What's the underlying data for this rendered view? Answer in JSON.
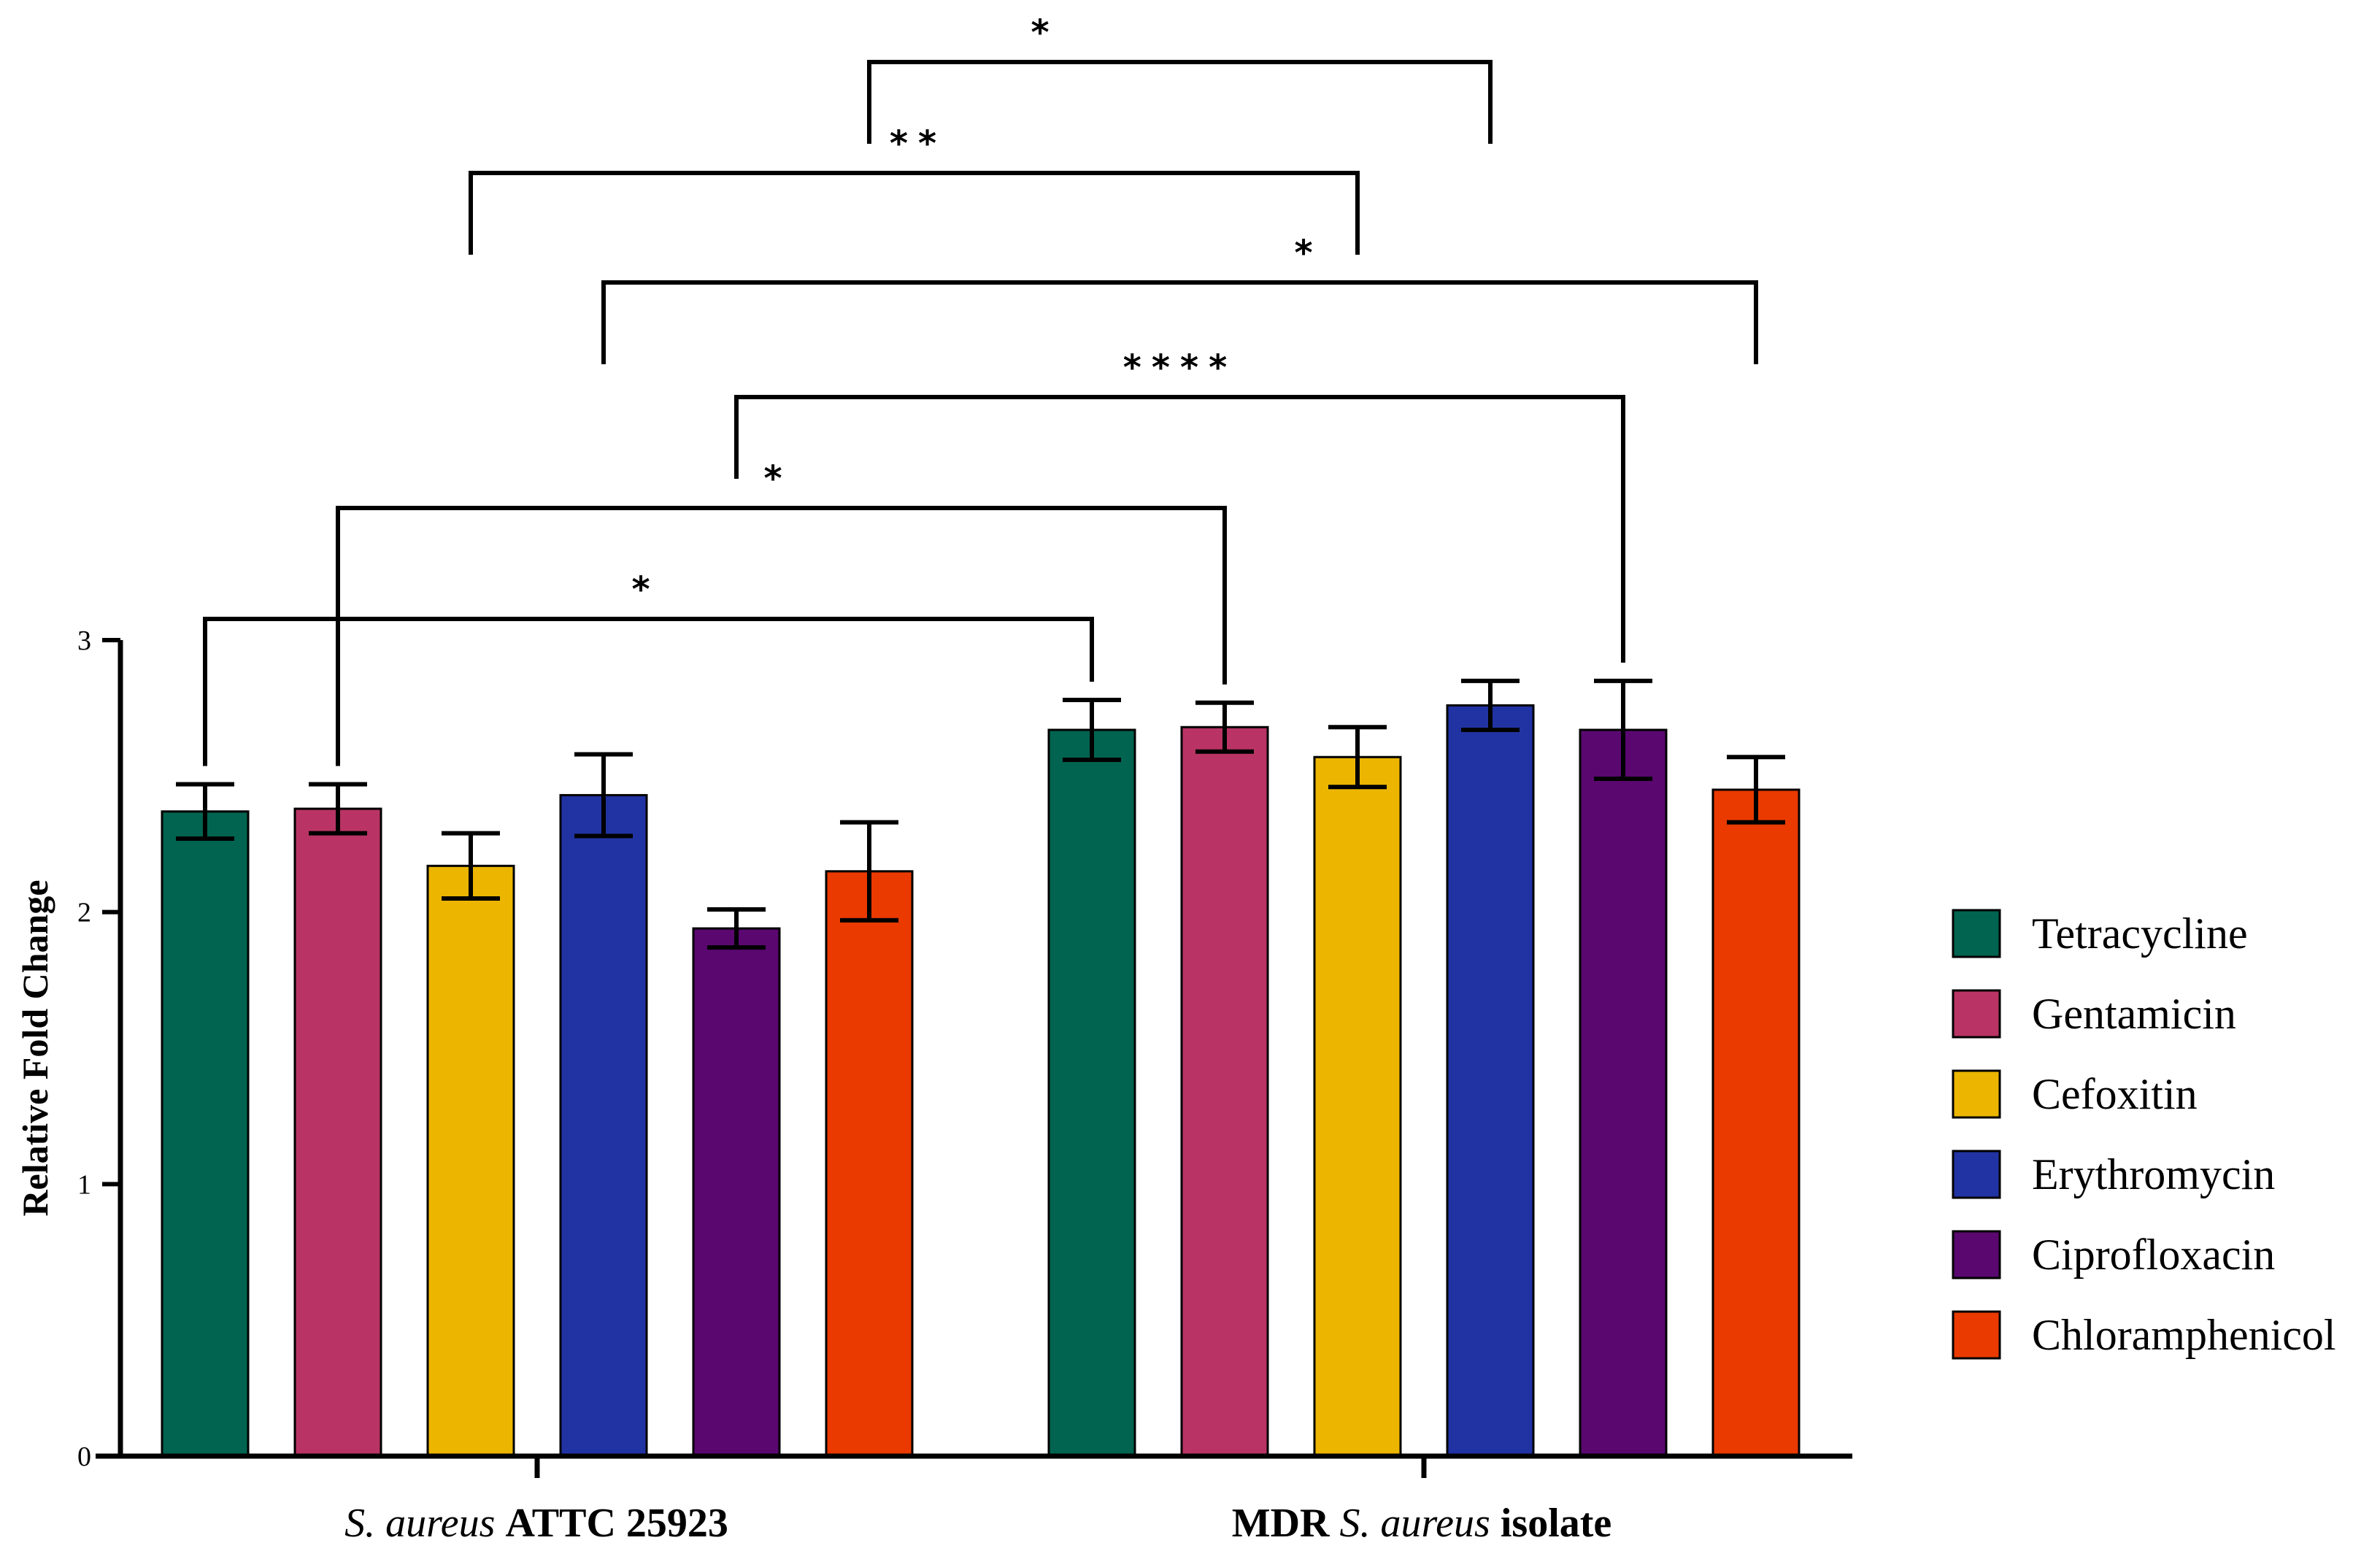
{
  "chart_data": {
    "type": "bar",
    "ylabel": "Relative Fold Change",
    "ylim": [
      0,
      3
    ],
    "yticks": [
      "0",
      "1",
      "2",
      "3"
    ],
    "groups": [
      {
        "name_italic": "S. aureus",
        "name_bold": "ATTC 25923"
      },
      {
        "name_bold": "MDR",
        "name_italic": "S. aureus",
        "name_bold2": "isolate"
      }
    ],
    "series": [
      {
        "name": "Tetracycline",
        "color": "#006450",
        "values": [
          2.37,
          2.67
        ],
        "errors": [
          0.1,
          0.11
        ]
      },
      {
        "name": "Gentamicin",
        "color": "#b93464",
        "values": [
          2.38,
          2.68
        ],
        "errors": [
          0.09,
          0.09
        ]
      },
      {
        "name": "Cefoxitin",
        "color": "#ecb600",
        "values": [
          2.17,
          2.57
        ],
        "errors": [
          0.12,
          0.11
        ]
      },
      {
        "name": "Erythromycin",
        "color": "#2133a3",
        "values": [
          2.43,
          2.76
        ],
        "errors": [
          0.15,
          0.09
        ]
      },
      {
        "name": "Ciprofloxacin",
        "color": "#5a0870",
        "values": [
          1.94,
          2.67
        ],
        "errors": [
          0.07,
          0.18
        ]
      },
      {
        "name": "Chloramphenicol",
        "color": "#ea3a00",
        "values": [
          2.15,
          2.45
        ],
        "errors": [
          0.18,
          0.12
        ]
      }
    ],
    "significance": [
      {
        "from": [
          0,
          0
        ],
        "to": [
          1,
          0
        ],
        "label": "*"
      },
      {
        "from": [
          0,
          1
        ],
        "to": [
          1,
          1
        ],
        "label": "*"
      },
      {
        "from": [
          0,
          4
        ],
        "to": [
          1,
          4
        ],
        "label": "****"
      },
      {
        "from": [
          0,
          3
        ],
        "to": [
          1,
          5
        ],
        "label": "*"
      },
      {
        "from": [
          0,
          2
        ],
        "to": [
          1,
          2
        ],
        "label": "**"
      },
      {
        "from": [
          0,
          5
        ],
        "to": [
          1,
          3
        ],
        "label": "*"
      }
    ]
  }
}
